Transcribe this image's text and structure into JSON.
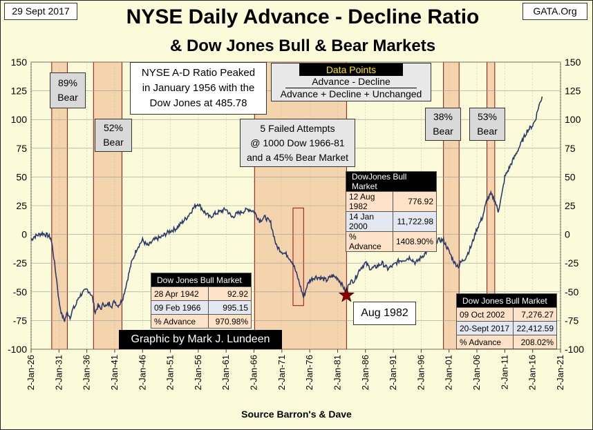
{
  "header": {
    "date": "29 Sept 2017",
    "source": "GATA.Org",
    "title": "NYSE Daily Advance - Decline Ratio",
    "subtitle": "& Dow Jones Bull & Bear Markets"
  },
  "colors": {
    "background": "#fbfbd9",
    "bear_band_fill": "#f2cda4",
    "bear_band_border": "#8b1010",
    "series_line": "#2b3a6b",
    "star": "#8b0000"
  },
  "annotations": {
    "peak_note": [
      "NYSE A-D Ratio Peaked",
      "in January 1956 with the",
      "Dow Jones at 485.78"
    ],
    "data_points_title": "Data Points",
    "data_points_numerator": "Advance - Decline",
    "data_points_denominator": "Advance + Decline + Unchanged",
    "failed_attempts": [
      "5 Failed Attempts",
      "@ 1000  Dow 1966-81",
      "and a 45% Bear Market"
    ],
    "credit": "Graphic by Mark J. Lundeen",
    "aug_1982": "Aug 1982",
    "bear_labels": [
      [
        "89%",
        "Bear"
      ],
      [
        "52%",
        "Bear"
      ],
      [
        "38%",
        "Bear"
      ],
      [
        "53%",
        "Bear"
      ]
    ]
  },
  "bull_tables": [
    {
      "title": "Dow Jones Bull Market",
      "rows": [
        [
          "28 Apr 1942",
          "92.92"
        ],
        [
          "09 Feb 1966",
          "995.15"
        ],
        [
          "% Advance",
          "970.98%"
        ]
      ]
    },
    {
      "title": "DowJones Bull Market",
      "rows": [
        [
          "12 Aug 1982",
          "776.92"
        ],
        [
          "14 Jan 2000",
          "11,722.98"
        ],
        [
          "% Advance",
          "1408.90%"
        ]
      ]
    },
    {
      "title": "Dow Jones Bull Market",
      "rows": [
        [
          "09 Oct 2002",
          "7,276.27"
        ],
        [
          "20-Sept 2017",
          "22,412.59"
        ],
        [
          "% Advance",
          "208.02%"
        ]
      ]
    }
  ],
  "chart_data": {
    "type": "line",
    "title": "NYSE Daily Advance - Decline Ratio",
    "subtitle": "& Dow Jones Bull & Bear Markets",
    "xlabel": "Source Barron's & Dave",
    "ylabel": "",
    "ylim": [
      -100,
      150
    ],
    "y_ticks": [
      150,
      125,
      100,
      75,
      50,
      25,
      0,
      -25,
      -50,
      -75,
      -100
    ],
    "x_range": [
      1926.0,
      2021.0
    ],
    "x_ticks": [
      "2-Jan-26",
      "2-Jan-31",
      "2-Jan-36",
      "2-Jan-41",
      "2-Jan-46",
      "2-Jan-51",
      "2-Jan-56",
      "2-Jan-61",
      "2-Jan-66",
      "2-Jan-71",
      "2-Jan-76",
      "2-Jan-81",
      "2-Jan-86",
      "2-Jan-91",
      "2-Jan-96",
      "2-Jan-01",
      "2-Jan-06",
      "2-Jan-11",
      "2-Jan-16",
      "2-Jan-21"
    ],
    "grid": true,
    "bear_markets": [
      {
        "start": 1929.7,
        "end": 1932.5
      },
      {
        "start": 1937.2,
        "end": 1942.3
      },
      {
        "start": 1966.1,
        "end": 1982.6
      },
      {
        "start": 1973.0,
        "end": 1974.9
      },
      {
        "start": 2000.0,
        "end": 2002.8
      },
      {
        "start": 2007.8,
        "end": 2009.2
      }
    ],
    "marker": {
      "label": "Aug 1982",
      "x": 1982.6,
      "y": -53
    },
    "series": [
      {
        "x": [
          1926.0,
          1926.5,
          1927.0,
          1927.5,
          1928.0,
          1928.5,
          1929.0,
          1929.5,
          1929.8,
          1930.2,
          1930.6,
          1931.0,
          1931.5,
          1932.0,
          1932.5,
          1933.0,
          1933.5,
          1934.0,
          1934.5,
          1935.0,
          1935.5,
          1936.0,
          1936.5,
          1937.0,
          1937.5,
          1938.0,
          1938.5,
          1939.0,
          1939.5,
          1940.0,
          1940.5,
          1941.0,
          1941.5,
          1942.0,
          1942.5,
          1943.0,
          1943.5,
          1944.0,
          1945.0,
          1946.0,
          1946.5,
          1947.0,
          1948.0,
          1949.0,
          1949.5,
          1950.0,
          1951.0,
          1952.0,
          1953.0,
          1954.0,
          1955.0,
          1955.5,
          1956.0,
          1957.0,
          1958.0,
          1959.0,
          1960.0,
          1961.0,
          1962.0,
          1963.0,
          1964.0,
          1965.0,
          1966.0,
          1967.0,
          1968.0,
          1969.0,
          1970.0,
          1971.0,
          1972.0,
          1973.0,
          1974.0,
          1974.9,
          1975.5,
          1976.0,
          1977.0,
          1978.0,
          1979.0,
          1980.0,
          1981.0,
          1982.0,
          1982.6,
          1983.0,
          1984.0,
          1985.0,
          1986.0,
          1987.0,
          1988.0,
          1989.0,
          1990.0,
          1991.0,
          1992.0,
          1993.0,
          1994.0,
          1995.0,
          1996.0,
          1997.0,
          1998.0,
          1999.0,
          2000.0,
          2001.0,
          2002.0,
          2002.8,
          2003.0,
          2004.0,
          2005.0,
          2006.0,
          2007.0,
          2007.8,
          2008.5,
          2009.2,
          2009.8,
          2010.5,
          2011.0,
          2012.0,
          2013.0,
          2014.0,
          2015.0,
          2016.0,
          2016.5,
          2017.0,
          2017.7
        ],
        "values": [
          -5,
          -2,
          -1,
          0,
          1,
          0,
          -1,
          -3,
          -10,
          -25,
          -40,
          -58,
          -70,
          -75,
          -68,
          -72,
          -65,
          -62,
          -55,
          -52,
          -50,
          -48,
          -50,
          -55,
          -68,
          -62,
          -65,
          -60,
          -63,
          -60,
          -62,
          -58,
          -62,
          -60,
          -55,
          -45,
          -35,
          -25,
          -12,
          -5,
          -8,
          -10,
          -5,
          -3,
          -2,
          0,
          3,
          5,
          10,
          15,
          22,
          25,
          27,
          20,
          15,
          18,
          20,
          22,
          15,
          18,
          20,
          22,
          20,
          12,
          15,
          10,
          -10,
          -15,
          -18,
          -25,
          -40,
          -55,
          -45,
          -40,
          -37,
          -38,
          -40,
          -36,
          -38,
          -45,
          -53,
          -42,
          -40,
          -30,
          -25,
          -30,
          -28,
          -25,
          -30,
          -27,
          -23,
          -22,
          -20,
          -25,
          -20,
          -15,
          -10,
          -5,
          -5,
          -15,
          -25,
          -28,
          -25,
          -20,
          -10,
          5,
          15,
          30,
          35,
          30,
          20,
          35,
          50,
          60,
          70,
          80,
          90,
          95,
          100,
          110,
          120
        ]
      }
    ]
  }
}
